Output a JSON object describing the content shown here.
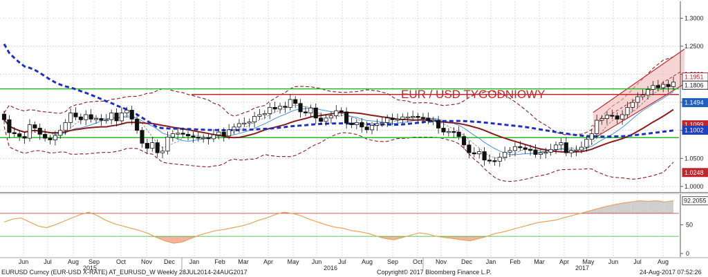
{
  "footer": {
    "left": "EURUSD Curncy (EUR-USD X-RATE) AT_EURUSD_W  Weekly 28JUL2014-24AUG2017",
    "center": "Copyright© 2017 Bloomberg Finance L.P.",
    "right": "24-Aug-2017 07:52:26"
  },
  "chart_data": [
    {
      "type": "candlestick",
      "title": "EUR / USD TYGODNIOWY",
      "x_labels": [
        "Jun",
        "Jul",
        "Aug",
        "Sep",
        "Oct",
        "Nov",
        "Dec",
        "Jan",
        "Feb",
        "Mar",
        "Apr",
        "May",
        "Jun",
        "Jul",
        "Aug",
        "Sep",
        "Oct",
        "Nov",
        "Dec",
        "Jan",
        "Feb",
        "Mar",
        "Apr",
        "May",
        "Jun",
        "Jul",
        "Aug"
      ],
      "year_labels": [
        "2015",
        "2016",
        "2017"
      ],
      "ylim": [
        0.99,
        1.33
      ],
      "y_ticks": [
        1.0,
        1.05,
        1.1,
        1.15,
        1.2,
        1.25,
        1.3
      ],
      "y_tick_labels": [
        "1.0000",
        "1.0500",
        "1.1000",
        "1.1500",
        "1.2000",
        "1.2500",
        "1.3000"
      ],
      "grid": true,
      "price_tags": [
        {
          "label": "1.1951",
          "value": 1.1951,
          "color": "#c0272d",
          "filled": false
        },
        {
          "label": "1.1806",
          "value": 1.1806,
          "color": "#222222",
          "filled": false
        },
        {
          "label": "1.1494",
          "value": 1.1494,
          "color": "#1f5fbf",
          "filled": true
        },
        {
          "label": "1.1099",
          "value": 1.1099,
          "color": "#c0272d",
          "filled": true
        },
        {
          "label": "1.1002",
          "value": 1.1002,
          "color": "#1f3fbf",
          "filled": true
        },
        {
          "label": "1.0248",
          "value": 1.0248,
          "color": "#c0272d",
          "filled": true
        }
      ],
      "horizontal_levels": [
        {
          "value": 1.174,
          "color": "#22bb22"
        },
        {
          "value": 1.087,
          "color": "#22bb22"
        },
        {
          "value": 1.164,
          "color": "#c0272d"
        }
      ],
      "closes": [
        1.119,
        1.096,
        1.094,
        1.089,
        1.086,
        1.11,
        1.104,
        1.093,
        1.086,
        1.083,
        1.091,
        1.1,
        1.114,
        1.131,
        1.124,
        1.119,
        1.128,
        1.12,
        1.121,
        1.118,
        1.119,
        1.131,
        1.117,
        1.131,
        1.136,
        1.12,
        1.1,
        1.077,
        1.068,
        1.078,
        1.06,
        1.063,
        1.088,
        1.094,
        1.095,
        1.093,
        1.09,
        1.088,
        1.086,
        1.087,
        1.085,
        1.092,
        1.097,
        1.09,
        1.101,
        1.106,
        1.112,
        1.113,
        1.115,
        1.125,
        1.128,
        1.13,
        1.141,
        1.138,
        1.143,
        1.141,
        1.155,
        1.148,
        1.133,
        1.131,
        1.14,
        1.122,
        1.116,
        1.122,
        1.126,
        1.135,
        1.133,
        1.113,
        1.11,
        1.114,
        1.106,
        1.101,
        1.109,
        1.112,
        1.114,
        1.122,
        1.119,
        1.12,
        1.124,
        1.124,
        1.125,
        1.123,
        1.122,
        1.117,
        1.118,
        1.104,
        1.097,
        1.098,
        1.097,
        1.089,
        1.074,
        1.06,
        1.058,
        1.062,
        1.047,
        1.046,
        1.045,
        1.052,
        1.061,
        1.064,
        1.071,
        1.069,
        1.066,
        1.065,
        1.057,
        1.06,
        1.061,
        1.066,
        1.074,
        1.078,
        1.06,
        1.064,
        1.065,
        1.07,
        1.084,
        1.094,
        1.118,
        1.121,
        1.127,
        1.126,
        1.12,
        1.128,
        1.141,
        1.15,
        1.16,
        1.163,
        1.173,
        1.18,
        1.176,
        1.182,
        1.178,
        1.186
      ]
    },
    {
      "type": "line",
      "title": "",
      "ylim": [
        0,
        100
      ],
      "y_ticks": [
        0,
        50
      ],
      "levels": [
        70,
        30
      ],
      "last_value_label": "92.2055",
      "values": [
        55,
        60,
        62,
        55,
        48,
        45,
        50,
        56,
        62,
        68,
        72,
        66,
        58,
        52,
        48,
        44,
        40,
        35,
        28,
        22,
        18,
        20,
        26,
        32,
        36,
        40,
        42,
        45,
        48,
        52,
        58,
        62,
        68,
        72,
        70,
        66,
        60,
        55,
        50,
        46,
        44,
        40,
        38,
        35,
        30,
        26,
        24,
        28,
        32,
        36,
        34,
        30,
        28,
        26,
        24,
        22,
        26,
        30,
        35,
        38,
        42,
        46,
        50,
        54,
        56,
        58,
        62,
        66,
        70,
        74,
        78,
        82,
        85,
        88,
        90,
        92,
        91,
        92,
        90,
        92
      ]
    }
  ]
}
